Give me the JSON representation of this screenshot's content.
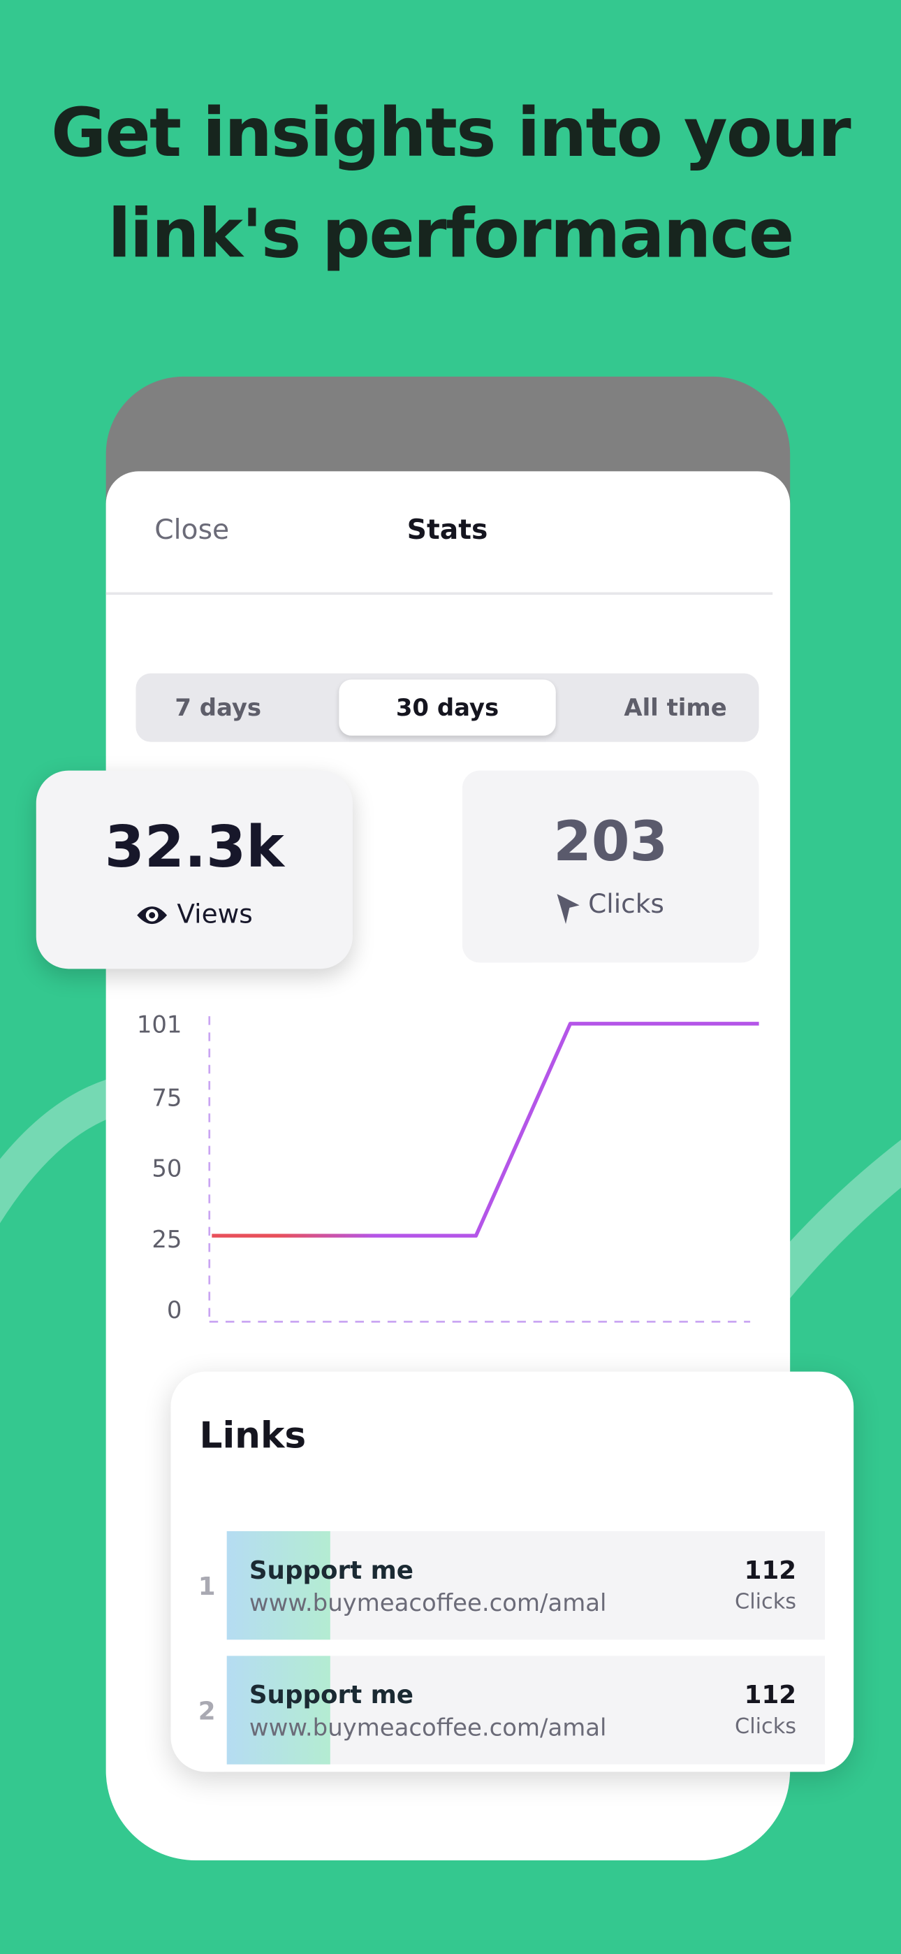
{
  "header": {
    "title": [
      "Get insights into your",
      "link's performance"
    ]
  },
  "sheet": {
    "close": "Close",
    "title": "Stats"
  },
  "tabs": {
    "options": [
      "7 days",
      "30 days",
      "All time"
    ],
    "selected": 1
  },
  "stats": {
    "views": {
      "value": "32.3k",
      "label": "Views"
    },
    "clicks": {
      "value": 203,
      "label": "Clicks"
    }
  },
  "chart_data": {
    "type": "line",
    "categories": [
      null,
      null,
      null,
      null,
      null,
      null,
      null,
      null,
      null,
      null,
      null,
      null,
      null,
      null,
      null,
      null,
      null,
      null,
      null,
      null,
      null,
      null,
      null,
      null,
      null,
      null,
      null,
      null,
      null,
      null
    ],
    "values": [
      26,
      26,
      26,
      26,
      26,
      26,
      26,
      26,
      26,
      26,
      26,
      26,
      26,
      26,
      26,
      41,
      56,
      71,
      86,
      101,
      101,
      101,
      101,
      101,
      101,
      101,
      101,
      101,
      101,
      101
    ],
    "colors": [
      "#e8505b",
      "#b455e8"
    ],
    "ylim": [
      0,
      101
    ],
    "yticks": [
      0,
      25,
      50,
      75,
      101
    ]
  },
  "links": {
    "title": "Links",
    "rows": [
      {
        "rank": 1,
        "title": "Support me",
        "url": "www.buymeacoffee.com/amal",
        "clicks": 112,
        "clicks_label": "Clicks"
      },
      {
        "rank": 2,
        "title": "Support me",
        "url": "www.buymeacoffee.com/amal",
        "clicks": 112,
        "clicks_label": "Clicks"
      }
    ]
  }
}
